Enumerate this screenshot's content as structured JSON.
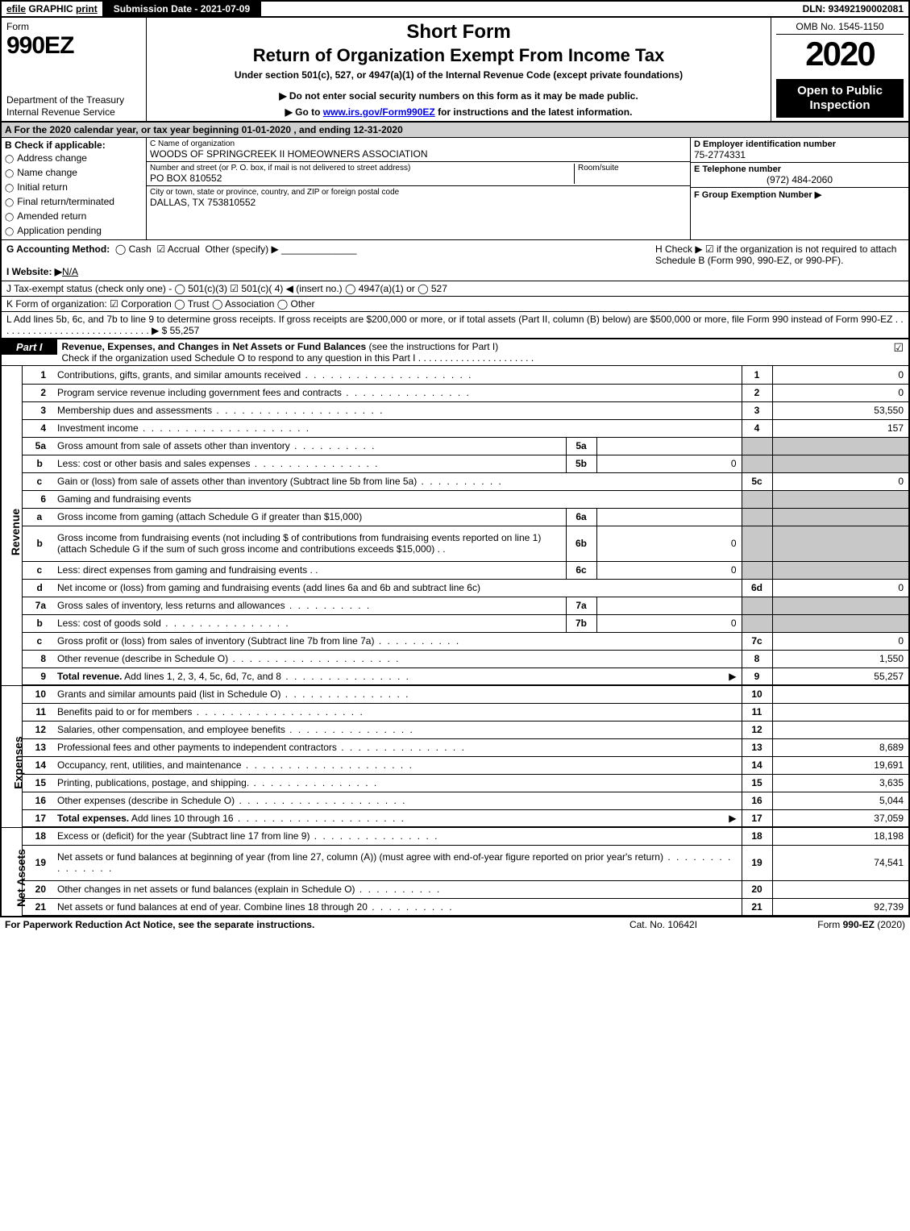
{
  "topbar": {
    "efile": "efile",
    "graphic": "GRAPHIC",
    "print": "print",
    "submission": "Submission Date - 2021-07-09",
    "dln": "DLN: 93492190002081"
  },
  "header": {
    "form": "Form",
    "formno": "990EZ",
    "dept1": "Department of the Treasury",
    "dept2": "Internal Revenue Service",
    "title1": "Short Form",
    "title2": "Return of Organization Exempt From Income Tax",
    "title3": "Under section 501(c), 527, or 4947(a)(1) of the Internal Revenue Code (except private foundations)",
    "title4": "▶ Do not enter social security numbers on this form as it may be made public.",
    "title5a": "▶ Go to ",
    "title5link": "www.irs.gov/Form990EZ",
    "title5b": " for instructions and the latest information.",
    "omb": "OMB No. 1545-1150",
    "year": "2020",
    "open": "Open to Public Inspection"
  },
  "period": "A  For the 2020 calendar year, or tax year beginning 01-01-2020 , and ending 12-31-2020",
  "boxB": {
    "label": "B  Check if applicable:",
    "items": [
      "Address change",
      "Name change",
      "Initial return",
      "Final return/terminated",
      "Amended return",
      "Application pending"
    ]
  },
  "boxC": {
    "nameLbl": "C Name of organization",
    "name": "WOODS OF SPRINGCREEK II HOMEOWNERS ASSOCIATION",
    "addrLbl": "Number and street (or P. O. box, if mail is not delivered to street address)",
    "addr": "PO BOX 810552",
    "roomLbl": "Room/suite",
    "cityLbl": "City or town, state or province, country, and ZIP or foreign postal code",
    "city": "DALLAS, TX  753810552"
  },
  "boxD": {
    "lbl": "D Employer identification number",
    "val": "75-2774331"
  },
  "boxE": {
    "lbl": "E Telephone number",
    "val": "(972) 484-2060"
  },
  "boxF": {
    "lbl": "F Group Exemption Number   ▶",
    "val": ""
  },
  "boxG": {
    "lbl": "G Accounting Method:",
    "cash": "Cash",
    "accrual": "Accrual",
    "other": "Other (specify) ▶"
  },
  "boxH": {
    "txt": "H  Check ▶ ☑ if the organization is not required to attach Schedule B (Form 990, 990-EZ, or 990-PF)."
  },
  "boxI": {
    "lbl": "I Website: ▶",
    "val": "N/A"
  },
  "boxJ": "J Tax-exempt status (check only one) - ◯ 501(c)(3)  ☑ 501(c)( 4) ◀ (insert no.)  ◯ 4947(a)(1) or  ◯ 527",
  "boxK": "K Form of organization:   ☑ Corporation   ◯ Trust   ◯ Association   ◯ Other",
  "boxL": "L Add lines 5b, 6c, and 7b to line 9 to determine gross receipts. If gross receipts are $200,000 or more, or if total assets (Part II, column (B) below) are $500,000 or more, file Form 990 instead of Form 990-EZ  .  .  .  .  .  .  .  .  .  .  .  .  .  .  .  .  .  .  .  .  .  .  .  .  .  .  .  .  .  ▶ $ 55,257",
  "part1": {
    "tag": "Part I",
    "title": "Revenue, Expenses, and Changes in Net Assets or Fund Balances",
    "note": " (see the instructions for Part I)",
    "sub": "Check if the organization used Schedule O to respond to any question in this Part I ."
  },
  "sideLabels": {
    "rev": "Revenue",
    "exp": "Expenses",
    "na": "Net Assets"
  },
  "rows": [
    {
      "n": "1",
      "d": "Contributions, gifts, grants, and similar amounts received",
      "dot": "dots",
      "on": "1",
      "ov": "0"
    },
    {
      "n": "2",
      "d": "Program service revenue including government fees and contracts",
      "dot": "dots-mh",
      "on": "2",
      "ov": "0"
    },
    {
      "n": "3",
      "d": "Membership dues and assessments",
      "dot": "dots",
      "on": "3",
      "ov": "53,550"
    },
    {
      "n": "4",
      "d": "Investment income",
      "dot": "dots",
      "on": "4",
      "ov": "157"
    },
    {
      "n": "5a",
      "d": "Gross amount from sale of assets other than inventory",
      "dot": "dots-sh",
      "in": "5a",
      "iv": "",
      "shadeOut": true
    },
    {
      "n": "b",
      "sub": true,
      "d": "Less: cost or other basis and sales expenses",
      "dot": "dots-mh",
      "in": "5b",
      "iv": "0",
      "shadeOut": true
    },
    {
      "n": "c",
      "sub": true,
      "d": "Gain or (loss) from sale of assets other than inventory (Subtract line 5b from line 5a)",
      "dot": "dots-sh",
      "on": "5c",
      "ov": "0"
    },
    {
      "n": "6",
      "d": "Gaming and fundraising events",
      "noOut": true,
      "shadeOut": true
    },
    {
      "n": "a",
      "sub": true,
      "d": "Gross income from gaming (attach Schedule G if greater than $15,000)",
      "in": "6a",
      "iv": "",
      "shadeOut": true
    },
    {
      "n": "b",
      "sub": true,
      "d": "Gross income from fundraising events (not including $               of contributions from fundraising events reported on line 1) (attach Schedule G if the sum of such gross income and contributions exceeds $15,000)     .  .",
      "in": "6b",
      "iv": "0",
      "tall": true,
      "shadeOut": true
    },
    {
      "n": "c",
      "sub": true,
      "d": "Less: direct expenses from gaming and fundraising events       .  .",
      "in": "6c",
      "iv": "0",
      "shadeOut": true
    },
    {
      "n": "d",
      "sub": true,
      "d": "Net income or (loss) from gaming and fundraising events (add lines 6a and 6b and subtract line 6c)",
      "on": "6d",
      "ov": "0"
    },
    {
      "n": "7a",
      "d": "Gross sales of inventory, less returns and allowances",
      "dot": "dots-sh",
      "in": "7a",
      "iv": "",
      "shadeOut": true
    },
    {
      "n": "b",
      "sub": true,
      "d": "Less: cost of goods sold",
      "dot": "dots-mh",
      "in": "7b",
      "iv": "0",
      "shadeOut": true
    },
    {
      "n": "c",
      "sub": true,
      "d": "Gross profit or (loss) from sales of inventory (Subtract line 7b from line 7a)",
      "dot": "dots-sh",
      "on": "7c",
      "ov": "0"
    },
    {
      "n": "8",
      "d": "Other revenue (describe in Schedule O)",
      "dot": "dots",
      "on": "8",
      "ov": "1,550"
    },
    {
      "n": "9",
      "d": "Total revenue. Add lines 1, 2, 3, 4, 5c, 6d, 7c, and 8",
      "bold": true,
      "dot": "dots-mh",
      "arrow": true,
      "on": "9",
      "ov": "55,257",
      "thick": true
    }
  ],
  "expRows": [
    {
      "n": "10",
      "d": "Grants and similar amounts paid (list in Schedule O)",
      "dot": "dots-mh",
      "on": "10",
      "ov": ""
    },
    {
      "n": "11",
      "d": "Benefits paid to or for members",
      "dot": "dots",
      "on": "11",
      "ov": ""
    },
    {
      "n": "12",
      "d": "Salaries, other compensation, and employee benefits",
      "dot": "dots-mh",
      "on": "12",
      "ov": ""
    },
    {
      "n": "13",
      "d": "Professional fees and other payments to independent contractors",
      "dot": "dots-mh",
      "on": "13",
      "ov": "8,689"
    },
    {
      "n": "14",
      "d": "Occupancy, rent, utilities, and maintenance",
      "dot": "dots",
      "on": "14",
      "ov": "19,691"
    },
    {
      "n": "15",
      "d": "Printing, publications, postage, and shipping.",
      "dot": "dots-mh",
      "on": "15",
      "ov": "3,635"
    },
    {
      "n": "16",
      "d": "Other expenses (describe in Schedule O)",
      "dot": "dots",
      "on": "16",
      "ov": "5,044"
    },
    {
      "n": "17",
      "d": "Total expenses. Add lines 10 through 16",
      "bold": true,
      "dot": "dots",
      "arrow": true,
      "on": "17",
      "ov": "37,059",
      "thick": true
    }
  ],
  "naRows": [
    {
      "n": "18",
      "d": "Excess or (deficit) for the year (Subtract line 17 from line 9)",
      "dot": "dots-mh",
      "on": "18",
      "ov": "18,198"
    },
    {
      "n": "19",
      "d": "Net assets or fund balances at beginning of year (from line 27, column (A)) (must agree with end-of-year figure reported on prior year's return)",
      "dot": "dots-mh",
      "on": "19",
      "ov": "74,541",
      "tall": true
    },
    {
      "n": "20",
      "d": "Other changes in net assets or fund balances (explain in Schedule O)",
      "dot": "dots-sh",
      "on": "20",
      "ov": ""
    },
    {
      "n": "21",
      "d": "Net assets or fund balances at end of year. Combine lines 18 through 20",
      "dot": "dots-sh",
      "on": "21",
      "ov": "92,739",
      "thick": true
    }
  ],
  "footer": {
    "l": "For Paperwork Reduction Act Notice, see the separate instructions.",
    "m": "Cat. No. 10642I",
    "r": "Form 990-EZ (2020)"
  }
}
